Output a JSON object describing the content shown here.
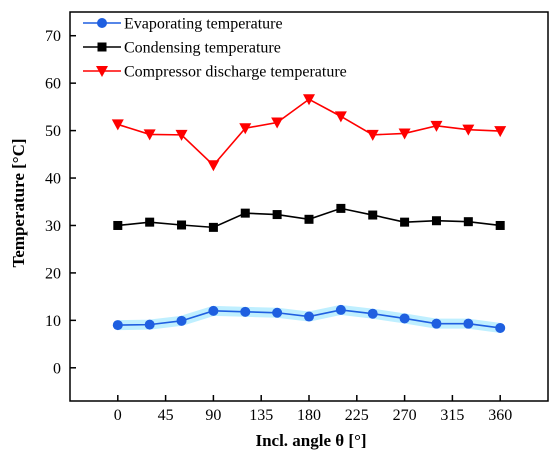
{
  "chart_data": {
    "type": "line",
    "title": "",
    "xlabel": "Incl. angle θ [°]",
    "ylabel": "Temperature [°C]",
    "x": [
      0,
      30,
      60,
      90,
      120,
      150,
      180,
      210,
      240,
      270,
      300,
      330,
      360
    ],
    "xticks": [
      0,
      45,
      90,
      135,
      180,
      225,
      270,
      315,
      360
    ],
    "xlim": [
      -45,
      405
    ],
    "yticks": [
      0,
      10,
      20,
      30,
      40,
      50,
      60,
      70
    ],
    "ylim": [
      -7,
      75
    ],
    "grid": false,
    "legend_position": "top-left",
    "series": [
      {
        "name": "Evaporating temperature",
        "color": "#1f5fe0",
        "band_color": "#bfefff",
        "marker": "circle",
        "values": [
          9.0,
          9.1,
          9.9,
          12.0,
          11.8,
          11.6,
          10.8,
          12.2,
          11.4,
          10.4,
          9.3,
          9.3,
          8.4
        ]
      },
      {
        "name": "Condensing temperature",
        "color": "#000000",
        "marker": "square",
        "values": [
          30.0,
          30.7,
          30.1,
          29.6,
          32.6,
          32.3,
          31.3,
          33.6,
          32.2,
          30.7,
          31.0,
          30.8,
          30.0
        ]
      },
      {
        "name": "Compressor discharge temperature",
        "color": "#ff0000",
        "marker": "triangle-down",
        "values": [
          51.3,
          49.2,
          49.1,
          42.7,
          50.5,
          51.7,
          56.6,
          53.0,
          49.1,
          49.4,
          51.0,
          50.2,
          49.9
        ]
      }
    ]
  }
}
